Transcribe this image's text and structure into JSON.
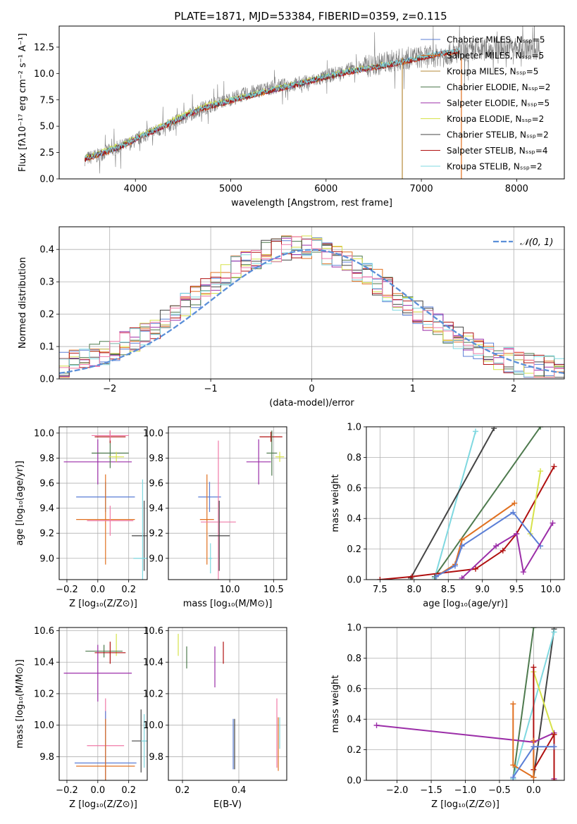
{
  "figure_title": "PLATE=1871, MJD=53384, FIBERID=0359, z=0.115",
  "colors": {
    "chabrier_miles": "#5b7fd6",
    "salpeter_miles": "#e07020",
    "kroupa_miles": "#b58a3a",
    "chabrier_elodie": "#4e7a4e",
    "salpeter_elodie": "#9b2ea8",
    "kroupa_elodie": "#d6e24a",
    "chabrier_stelib": "#444444",
    "salpeter_stelib": "#b01010",
    "kroupa_stelib": "#7fd8e0",
    "pink": "#f07aa8",
    "gaussian": "#5b8fd8",
    "spectrum": "#808080",
    "grid": "#b0b0b0"
  },
  "chart_data": [
    {
      "id": "spectrum",
      "type": "line",
      "title": "PLATE=1871, MJD=53384, FIBERID=0359, z=0.115",
      "xlabel": "wavelength [Angstrom, rest frame]",
      "ylabel": "Flux [fλ10⁻¹⁷ erg cm⁻² s⁻¹ A⁻¹]",
      "xlim": [
        3200,
        8500
      ],
      "ylim": [
        0,
        14.5
      ],
      "xticks": [
        "4000",
        "5000",
        "6000",
        "7000",
        "8000"
      ],
      "yticks": [
        "0.0",
        "2.5",
        "5.0",
        "7.5",
        "10.0",
        "12.5"
      ],
      "grid": false,
      "legend_position": "top-right",
      "series": [
        {
          "name": "Chabrier MILES, Nₛₛₚ=5",
          "x": [
            3470,
            3800,
            4200,
            4700,
            5200,
            5700,
            6200,
            6700,
            7000,
            7200,
            7400
          ],
          "y": [
            1.9,
            2.9,
            4.6,
            6.7,
            7.9,
            9.0,
            10.1,
            10.9,
            11.5,
            11.9,
            12.1
          ]
        },
        {
          "name": "Salpeter MILES, Nₛₛₚ=5",
          "x": [
            3470,
            3800,
            4200,
            4700,
            5200,
            5700,
            6200,
            6700,
            7000,
            7200,
            7400
          ],
          "y": [
            1.85,
            2.85,
            4.55,
            6.65,
            7.85,
            8.95,
            10.05,
            10.85,
            11.45,
            11.85,
            12.05
          ]
        },
        {
          "name": "Kroupa MILES, Nₛₛₚ=5",
          "x": [
            3470,
            3800,
            4200,
            4700,
            5200,
            5700,
            6200,
            6700,
            7000,
            7200,
            7400
          ],
          "y": [
            1.9,
            2.9,
            4.6,
            6.7,
            7.9,
            9.0,
            10.1,
            10.9,
            11.5,
            11.9,
            12.1
          ]
        },
        {
          "name": "Chabrier ELODIE, Nₛₛₚ=2",
          "x": [
            3470,
            3800,
            4200,
            4700,
            5200,
            5700,
            6200,
            6700
          ],
          "y": [
            1.95,
            2.95,
            4.65,
            6.75,
            7.95,
            9.05,
            10.15,
            10.95
          ]
        },
        {
          "name": "Salpeter ELODIE, Nₛₛₚ=5",
          "x": [
            3470,
            3800,
            4200,
            4700,
            5200,
            5700,
            6200,
            6700
          ],
          "y": [
            1.9,
            2.9,
            4.6,
            6.7,
            7.9,
            9.0,
            10.1,
            10.9
          ]
        },
        {
          "name": "Kroupa ELODIE, Nₛₛₚ=2",
          "x": [
            3470,
            3800,
            4200,
            4700,
            5200,
            5700,
            6200,
            6700
          ],
          "y": [
            2.0,
            3.1,
            4.8,
            6.9,
            8.0,
            9.1,
            10.2,
            11.0
          ]
        },
        {
          "name": "Chabrier STELIB, Nₛₛₚ=2",
          "x": [
            3470,
            3800,
            4200,
            4700,
            5200,
            5700,
            6200,
            6700,
            7000,
            7200,
            7400
          ],
          "y": [
            1.9,
            2.9,
            4.6,
            6.7,
            7.9,
            9.0,
            10.1,
            10.9,
            11.5,
            11.9,
            12.1
          ]
        },
        {
          "name": "Salpeter STELIB, Nₛₛₚ=4",
          "x": [
            3470,
            3800,
            4200,
            4700,
            5200,
            5700,
            6200,
            6700,
            7000,
            7200,
            7400
          ],
          "y": [
            1.85,
            2.85,
            4.55,
            6.65,
            7.85,
            8.95,
            10.05,
            10.85,
            11.45,
            11.85,
            12.05
          ]
        },
        {
          "name": "Kroupa STELIB, Nₛₛₚ=2",
          "x": [
            3470,
            3800,
            4200,
            4700,
            5200,
            5700,
            6200,
            6700,
            7000,
            7200,
            7400
          ],
          "y": [
            1.95,
            2.95,
            4.65,
            6.75,
            7.95,
            9.05,
            10.15,
            10.95,
            11.55,
            11.95,
            12.15
          ]
        }
      ],
      "observed_spectrum": {
        "x": [
          3470,
          3600,
          3700,
          3800,
          3950,
          4100,
          4300,
          4500,
          4700,
          4900,
          5100,
          5300,
          5500,
          5700,
          5900,
          6100,
          6300,
          6500,
          6700,
          6900,
          7100,
          7300,
          7500,
          7700,
          7900,
          8100,
          8250
        ],
        "y": [
          1.9,
          2.2,
          2.6,
          2.9,
          3.4,
          4.2,
          4.8,
          5.8,
          6.7,
          7.3,
          7.9,
          8.4,
          8.8,
          9.0,
          9.4,
          10.0,
          10.5,
          10.8,
          11.2,
          11.5,
          11.6,
          11.9,
          12.1,
          12.3,
          12.5,
          12.3,
          12.4
        ]
      },
      "dropouts": [
        {
          "x": 6800,
          "color_key": "kroupa_miles"
        },
        {
          "x": 7420,
          "color_key": "salpeter_miles"
        }
      ]
    },
    {
      "id": "residuals",
      "type": "line",
      "xlabel": "(data-model)/error",
      "ylabel": "Normed distribution",
      "xlim": [
        -2.5,
        2.5
      ],
      "ylim": [
        0,
        0.47
      ],
      "xticks": [
        "−2",
        "−1",
        "0",
        "1",
        "2"
      ],
      "yticks": [
        "0.0",
        "0.1",
        "0.2",
        "0.3",
        "0.4"
      ],
      "grid": true,
      "legend_position": "top-right",
      "gaussian_label": "𝒩(0, 1)"
    },
    {
      "id": "age_vs_z",
      "type": "scatter",
      "xlabel": "Z [log₁₀(Z/Z⊙)]",
      "ylabel": "age  [log₁₀(age/yr)]",
      "xlim": [
        -0.25,
        0.32
      ],
      "ylim": [
        8.83,
        10.05
      ],
      "xticks": [
        "−0.2",
        "0.0",
        "0.2"
      ],
      "yticks": [
        "9.0",
        "9.2",
        "9.4",
        "9.6",
        "9.8",
        "10.0"
      ],
      "grid": true,
      "points": [
        {
          "color_key": "salpeter_elodie",
          "x": 0.0,
          "xerr": 0.22,
          "y": 9.77,
          "yerr": 0.18
        },
        {
          "color_key": "chabrier_elodie",
          "x": 0.08,
          "xerr": 0.12,
          "y": 9.84,
          "yerr": 0.12
        },
        {
          "color_key": "salpeter_stelib",
          "x": 0.08,
          "xerr": 0.1,
          "y": 9.97,
          "yerr": 0.05
        },
        {
          "color_key": "pink",
          "x": 0.08,
          "xerr": 0.12,
          "y": 9.98,
          "yerr": 0.04
        },
        {
          "color_key": "kroupa_elodie",
          "x": 0.12,
          "xerr": 0.05,
          "y": 9.81,
          "yerr": 0.04
        },
        {
          "color_key": "chabrier_miles",
          "x": 0.05,
          "xerr": 0.19,
          "y": 9.49,
          "yerr": 0.12
        },
        {
          "color_key": "salpeter_miles",
          "x": 0.05,
          "xerr": 0.19,
          "y": 9.31,
          "yerr": 0.36
        },
        {
          "color_key": "pink",
          "x": 0.08,
          "xerr": 0.15,
          "y": 9.3,
          "yerr": 0.12
        },
        {
          "color_key": "chabrier_stelib",
          "x": 0.3,
          "xerr": 0.08,
          "y": 9.18,
          "yerr": 0.28
        },
        {
          "color_key": "kroupa_stelib",
          "x": 0.29,
          "xerr": 0.06,
          "y": 9.0,
          "yerr": 0.63
        }
      ]
    },
    {
      "id": "age_vs_mass",
      "type": "scatter",
      "xlabel": "mass [log₁₀(M/M⊙)]",
      "ylabel": "",
      "xlim": [
        9.3,
        10.65
      ],
      "ylim": [
        8.83,
        10.05
      ],
      "xticks": [
        "10.0",
        "10.5"
      ],
      "yticks": [
        "9.0",
        "9.2",
        "9.4",
        "9.6",
        "9.8",
        "10.0"
      ],
      "grid": true,
      "points": [
        {
          "color_key": "salpeter_stelib",
          "x": 10.47,
          "xerr": 0.13,
          "y": 9.97,
          "yerr": 0.04
        },
        {
          "color_key": "kroupa_elodie",
          "x": 10.57,
          "xerr": 0.05,
          "y": 9.81,
          "yerr": 0.04
        },
        {
          "color_key": "salpeter_elodie",
          "x": 10.33,
          "xerr": 0.14,
          "y": 9.77,
          "yerr": 0.18
        },
        {
          "color_key": "chabrier_elodie",
          "x": 10.48,
          "xerr": 0.06,
          "y": 9.84,
          "yerr": 0.18
        },
        {
          "color_key": "chabrier_miles",
          "x": 9.77,
          "xerr": 0.13,
          "y": 9.49,
          "yerr": 0.12
        },
        {
          "color_key": "salpeter_miles",
          "x": 9.74,
          "xerr": 0.08,
          "y": 9.31,
          "yerr": 0.36
        },
        {
          "color_key": "pink",
          "x": 9.87,
          "xerr": 0.2,
          "y": 9.29,
          "yerr": 0.65
        },
        {
          "color_key": "chabrier_stelib",
          "x": 9.88,
          "xerr": 0.12,
          "y": 9.18,
          "yerr": 0.28
        },
        {
          "color_key": "kroupa_stelib",
          "x": 9.78,
          "xerr": 0.02,
          "y": 9.0,
          "yerr": 0.12
        }
      ]
    },
    {
      "id": "mass_weight_vs_age",
      "type": "line",
      "xlabel": "age  [log₁₀(age/yr)]",
      "ylabel": "mass weight",
      "xlim": [
        7.3,
        10.2
      ],
      "ylim": [
        0,
        1.0
      ],
      "xticks": [
        "7.5",
        "8.0",
        "8.5",
        "9.0",
        "9.5",
        "10.0"
      ],
      "yticks": [
        "0.0",
        "0.2",
        "0.4",
        "0.6",
        "0.8",
        "1.0"
      ],
      "grid": true,
      "series": [
        {
          "color_key": "kroupa_stelib",
          "x": [
            8.3,
            8.9
          ],
          "y": [
            0.01,
            0.97
          ]
        },
        {
          "color_key": "chabrier_stelib",
          "x": [
            7.95,
            9.17
          ],
          "y": [
            0.01,
            0.99
          ]
        },
        {
          "color_key": "chabrier_elodie",
          "x": [
            8.3,
            9.85
          ],
          "y": [
            0.02,
            1.0
          ]
        },
        {
          "color_key": "salpeter_stelib",
          "x": [
            7.5,
            7.97,
            8.9,
            9.3,
            9.5,
            10.05
          ],
          "y": [
            0.0,
            0.02,
            0.07,
            0.19,
            0.3,
            0.74
          ]
        },
        {
          "color_key": "kroupa_elodie",
          "x": [
            9.7,
            9.85
          ],
          "y": [
            0.3,
            0.71
          ]
        },
        {
          "color_key": "salpeter_miles",
          "x": [
            8.32,
            8.6,
            8.7,
            9.47
          ],
          "y": [
            0.02,
            0.1,
            0.26,
            0.5
          ]
        },
        {
          "color_key": "chabrier_miles",
          "x": [
            8.32,
            8.6,
            8.7,
            9.45,
            9.85
          ],
          "y": [
            0.02,
            0.09,
            0.22,
            0.44,
            0.22
          ]
        },
        {
          "color_key": "salpeter_elodie",
          "x": [
            8.7,
            9.2,
            9.5,
            9.6,
            10.03
          ],
          "y": [
            0.01,
            0.22,
            0.3,
            0.05,
            0.37
          ]
        }
      ]
    },
    {
      "id": "mass_vs_z",
      "type": "scatter",
      "xlabel": "Z [log₁₀(Z/Z⊙)]",
      "ylabel": "mass [log₁₀(M/M⊙)]",
      "xlim": [
        -0.25,
        0.32
      ],
      "ylim": [
        9.65,
        10.62
      ],
      "xticks": [
        "−0.2",
        "0.0",
        "0.2"
      ],
      "yticks": [
        "9.8",
        "10.0",
        "10.2",
        "10.4",
        "10.6"
      ],
      "grid": true,
      "points": [
        {
          "color_key": "kroupa_elodie",
          "x": 0.12,
          "xerr": 0.0,
          "y": 10.51,
          "yerr": 0.07
        },
        {
          "color_key": "chabrier_elodie",
          "x": 0.04,
          "xerr": 0.12,
          "y": 10.47,
          "yerr": 0.04
        },
        {
          "color_key": "salpeter_stelib",
          "x": 0.08,
          "xerr": 0.1,
          "y": 10.46,
          "yerr": 0.07
        },
        {
          "color_key": "salpeter_elodie",
          "x": 0.0,
          "xerr": 0.22,
          "y": 10.33,
          "yerr": 0.18
        },
        {
          "color_key": "pink",
          "x": 0.05,
          "xerr": 0.12,
          "y": 9.87,
          "yerr": 0.3
        },
        {
          "color_key": "chabrier_miles",
          "x": 0.05,
          "xerr": 0.2,
          "y": 9.76,
          "yerr": 0.33
        },
        {
          "color_key": "salpeter_miles",
          "x": 0.05,
          "xerr": 0.19,
          "y": 9.74,
          "yerr": 0.3
        },
        {
          "color_key": "chabrier_stelib",
          "x": 0.28,
          "xerr": 0.06,
          "y": 9.9,
          "yerr": 0.2
        },
        {
          "color_key": "kroupa_stelib",
          "x": 0.3,
          "xerr": 0.02,
          "y": 9.9,
          "yerr": 0.17
        }
      ]
    },
    {
      "id": "mass_vs_ebv",
      "type": "scatter",
      "xlabel": "E(B-V)",
      "ylabel": "",
      "xlim": [
        0.15,
        0.57
      ],
      "ylim": [
        9.65,
        10.62
      ],
      "xticks": [
        "0.2",
        "0.4"
      ],
      "yticks": [
        "9.8",
        "10.0",
        "10.2",
        "10.4",
        "10.6"
      ],
      "grid": true,
      "points": [
        {
          "color_key": "kroupa_elodie",
          "x": 0.185,
          "xerr": 0.0,
          "y": 10.51,
          "yerr": 0.07
        },
        {
          "color_key": "chabrier_elodie",
          "x": 0.215,
          "xerr": 0.0,
          "y": 10.43,
          "yerr": 0.07
        },
        {
          "color_key": "salpeter_elodie",
          "x": 0.315,
          "xerr": 0.0,
          "y": 10.37,
          "yerr": 0.13
        },
        {
          "color_key": "salpeter_stelib",
          "x": 0.345,
          "xerr": 0.0,
          "y": 10.46,
          "yerr": 0.07
        },
        {
          "color_key": "chabrier_miles",
          "x": 0.38,
          "xerr": 0.0,
          "y": 9.88,
          "yerr": 0.16
        },
        {
          "color_key": "chabrier_stelib",
          "x": 0.385,
          "xerr": 0.0,
          "y": 9.88,
          "yerr": 0.16
        },
        {
          "color_key": "pink",
          "x": 0.535,
          "xerr": 0.0,
          "y": 9.95,
          "yerr": 0.22
        },
        {
          "color_key": "salpeter_miles",
          "x": 0.54,
          "xerr": 0.0,
          "y": 9.88,
          "yerr": 0.17
        },
        {
          "color_key": "kroupa_stelib",
          "x": 0.545,
          "xerr": 0.0,
          "y": 9.95,
          "yerr": 0.1
        }
      ]
    },
    {
      "id": "mass_weight_vs_z",
      "type": "line",
      "xlabel": "Z [log₁₀(Z/Z⊙)]",
      "ylabel": "mass weight",
      "xlim": [
        -2.45,
        0.45
      ],
      "ylim": [
        0,
        1.0
      ],
      "xticks": [
        "−2.0",
        "−1.5",
        "−1.0",
        "−0.5",
        "0.0"
      ],
      "yticks": [
        "0.0",
        "0.2",
        "0.4",
        "0.6",
        "0.8",
        "1.0"
      ],
      "grid": true,
      "series": [
        {
          "color_key": "chabrier_elodie",
          "x": [
            -0.3,
            0.0
          ],
          "y": [
            0.01,
            1.0
          ]
        },
        {
          "color_key": "chabrier_stelib",
          "x": [
            0.0,
            0.3
          ],
          "y": [
            0.02,
            0.99
          ]
        },
        {
          "color_key": "kroupa_stelib",
          "x": [
            -0.3,
            0.3
          ],
          "y": [
            0.01,
            0.97
          ]
        },
        {
          "color_key": "salpeter_elodie",
          "x": [
            -2.3,
            0.0,
            0.3,
            0.3
          ],
          "y": [
            0.36,
            0.25,
            0.31,
            0.01
          ]
        },
        {
          "color_key": "kroupa_elodie",
          "x": [
            0.0,
            0.3
          ],
          "y": [
            0.71,
            0.3
          ]
        },
        {
          "color_key": "salpeter_stelib",
          "x": [
            0.0,
            0.0,
            0.3,
            0.3
          ],
          "y": [
            0.74,
            0.07,
            0.3,
            0.0
          ]
        },
        {
          "color_key": "salpeter_miles",
          "x": [
            -0.3,
            -0.3,
            0.0,
            0.0
          ],
          "y": [
            0.5,
            0.1,
            0.02,
            0.26
          ]
        },
        {
          "color_key": "chabrier_miles",
          "x": [
            -0.3,
            0.0,
            0.3
          ],
          "y": [
            0.02,
            0.22,
            0.22
          ]
        }
      ]
    }
  ]
}
